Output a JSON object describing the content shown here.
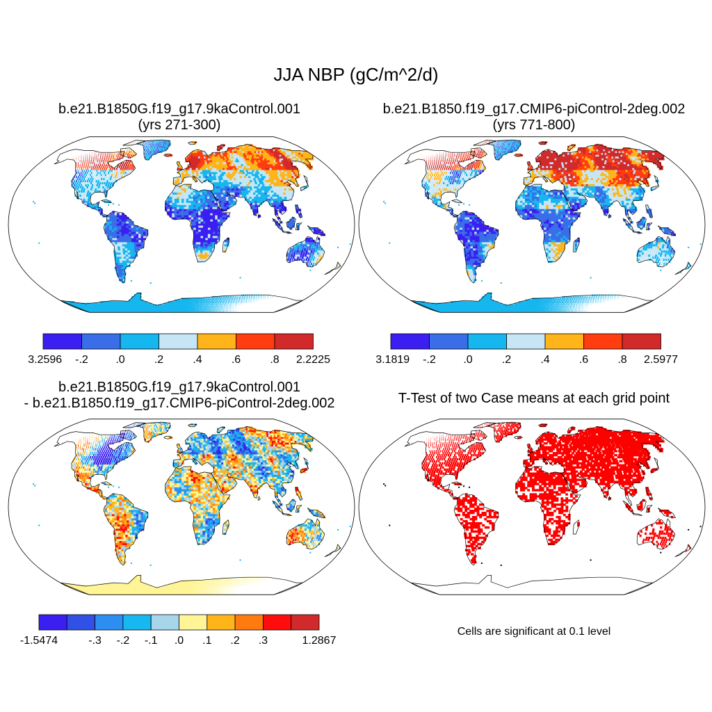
{
  "main_title": "JJA NBP (gC/m^2/d)",
  "panels": [
    {
      "id": "case1",
      "title_line1": "b.e21.B1850G.f19_g17.9kaControl.001",
      "title_line2": "(yrs 271-300)",
      "palette": "seq",
      "colorbar": {
        "colors": [
          "#3a1ff0",
          "#3a6ee8",
          "#16b6ef",
          "#c6e6f6",
          "#ffb519",
          "#ff3d11",
          "#d22a2a"
        ],
        "labels": [
          "-3.2596",
          "-.2",
          ".0",
          ".2",
          ".4",
          ".6",
          ".8",
          "2.2225"
        ]
      }
    },
    {
      "id": "case2",
      "title_line1": "b.e21.B1850.f19_g17.CMIP6-piControl-2deg.002",
      "title_line2": "(yrs 771-800)",
      "palette": "seq",
      "colorbar": {
        "colors": [
          "#3a1ff0",
          "#3a6ee8",
          "#16b6ef",
          "#c6e6f6",
          "#ffb519",
          "#ff3d11",
          "#d22a2a"
        ],
        "labels": [
          "-3.1819",
          "-.2",
          ".0",
          ".2",
          ".4",
          ".6",
          ".8",
          "2.5977"
        ]
      }
    },
    {
      "id": "diff",
      "title_line1": "b.e21.B1850G.f19_g17.9kaControl.001",
      "title_line2": "- b.e21.B1850.f19_g17.CMIP6-piControl-2deg.002",
      "palette": "div",
      "colorbar": {
        "colors": [
          "#3a1ff0",
          "#3050e6",
          "#2b8ef0",
          "#17b7ef",
          "#a6d5ec",
          "#fff597",
          "#ffb519",
          "#ff7a0f",
          "#ff0d0d",
          "#d22a2a"
        ],
        "labels": [
          "-1.5474",
          "",
          "-.3",
          "-.2",
          "-.1",
          ".0",
          ".1",
          ".2",
          ".3",
          "",
          "1.2867"
        ]
      }
    },
    {
      "id": "ttest",
      "title_line1": "T-Test of two Case means at each grid point",
      "title_line2": "",
      "palette": "sig",
      "note": "Cells are significant at 0.1 level"
    }
  ]
}
